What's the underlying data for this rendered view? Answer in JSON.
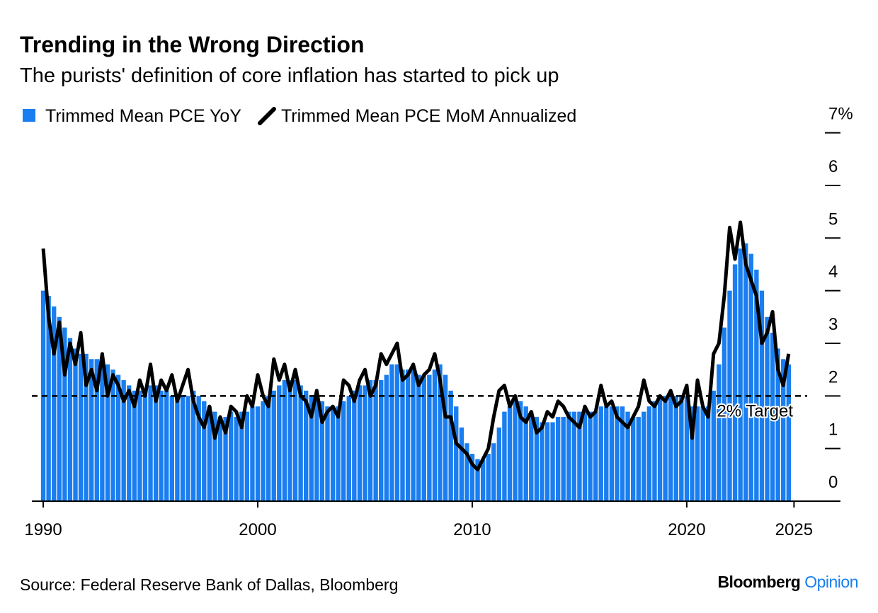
{
  "chart_data": {
    "type": "bar",
    "title": "Trending in the Wrong Direction",
    "subtitle": "The purists' definition of core inflation has started to pick up",
    "source": "Source: Federal Reserve Bank of Dallas, Bloomberg",
    "brand": [
      "Bloomberg",
      "Opinion"
    ],
    "xlim": [
      1989.47,
      2027.1
    ],
    "xticks": [
      1990,
      2000,
      2010,
      2020,
      2025
    ],
    "ylim": [
      0,
      7.6
    ],
    "yticks": [
      0,
      1,
      2,
      3,
      4,
      5,
      6,
      {
        "value": 7,
        "label": "7%"
      }
    ],
    "target": {
      "value": 2,
      "label": "2% Target"
    },
    "x": [
      1990,
      1990.25,
      1990.5,
      1990.75,
      1991,
      1991.25,
      1991.5,
      1991.75,
      1992,
      1992.25,
      1992.5,
      1992.75,
      1993,
      1993.25,
      1993.5,
      1993.75,
      1994,
      1994.25,
      1994.5,
      1994.75,
      1995,
      1995.25,
      1995.5,
      1995.75,
      1996,
      1996.25,
      1996.5,
      1996.75,
      1997,
      1997.25,
      1997.5,
      1997.75,
      1998,
      1998.25,
      1998.5,
      1998.75,
      1999,
      1999.25,
      1999.5,
      1999.75,
      2000,
      2000.25,
      2000.5,
      2000.75,
      2001,
      2001.25,
      2001.5,
      2001.75,
      2002,
      2002.25,
      2002.5,
      2002.75,
      2003,
      2003.25,
      2003.5,
      2003.75,
      2004,
      2004.25,
      2004.5,
      2004.75,
      2005,
      2005.25,
      2005.5,
      2005.75,
      2006,
      2006.25,
      2006.5,
      2006.75,
      2007,
      2007.25,
      2007.5,
      2007.75,
      2008,
      2008.25,
      2008.5,
      2008.75,
      2009,
      2009.25,
      2009.5,
      2009.75,
      2010,
      2010.25,
      2010.5,
      2010.75,
      2011,
      2011.25,
      2011.5,
      2011.75,
      2012,
      2012.25,
      2012.5,
      2012.75,
      2013,
      2013.25,
      2013.5,
      2013.75,
      2014,
      2014.25,
      2014.5,
      2014.75,
      2015,
      2015.25,
      2015.5,
      2015.75,
      2016,
      2016.25,
      2016.5,
      2016.75,
      2017,
      2017.25,
      2017.5,
      2017.75,
      2018,
      2018.25,
      2018.5,
      2018.75,
      2019,
      2019.25,
      2019.5,
      2019.75,
      2020,
      2020.25,
      2020.5,
      2020.75,
      2021,
      2021.25,
      2021.5,
      2021.75,
      2022,
      2022.25,
      2022.5,
      2022.75,
      2023,
      2023.25,
      2023.5,
      2023.75,
      2024,
      2024.25,
      2024.5,
      2024.75
    ],
    "series": [
      {
        "name": "Trimmed Mean PCE YoY",
        "type": "bar",
        "color": "#1a7ef0",
        "values": [
          4.0,
          3.9,
          3.7,
          3.5,
          3.3,
          3.1,
          2.9,
          2.8,
          2.8,
          2.7,
          2.7,
          2.6,
          2.6,
          2.5,
          2.4,
          2.3,
          2.2,
          2.1,
          2.1,
          2.1,
          2.2,
          2.2,
          2.1,
          2.1,
          2.0,
          2.0,
          2.0,
          2.0,
          2.1,
          2.0,
          1.9,
          1.8,
          1.7,
          1.6,
          1.6,
          1.7,
          1.6,
          1.7,
          1.7,
          1.8,
          1.8,
          1.9,
          2.0,
          2.1,
          2.2,
          2.3,
          2.3,
          2.3,
          2.2,
          2.1,
          2.0,
          1.9,
          1.9,
          1.8,
          1.8,
          1.8,
          1.9,
          2.0,
          2.1,
          2.2,
          2.2,
          2.3,
          2.3,
          2.3,
          2.4,
          2.6,
          2.6,
          2.5,
          2.5,
          2.5,
          2.4,
          2.4,
          2.4,
          2.5,
          2.6,
          2.4,
          2.1,
          1.8,
          1.4,
          1.1,
          0.9,
          0.8,
          0.8,
          0.9,
          1.1,
          1.4,
          1.7,
          1.8,
          1.9,
          1.9,
          1.8,
          1.7,
          1.6,
          1.5,
          1.5,
          1.5,
          1.6,
          1.6,
          1.7,
          1.7,
          1.7,
          1.7,
          1.7,
          1.7,
          1.8,
          1.8,
          1.8,
          1.8,
          1.8,
          1.7,
          1.6,
          1.6,
          1.7,
          1.8,
          1.9,
          2.0,
          2.0,
          2.0,
          2.0,
          2.0,
          2.0,
          1.8,
          1.8,
          1.8,
          1.8,
          2.1,
          2.6,
          3.3,
          4.0,
          4.5,
          4.8,
          4.9,
          4.7,
          4.4,
          4.0,
          3.5,
          3.2,
          2.9,
          2.7,
          2.6
        ]
      },
      {
        "name": "Trimmed Mean PCE MoM Annualized",
        "type": "line",
        "color": "#000000",
        "values": [
          4.8,
          3.5,
          2.8,
          3.4,
          2.4,
          3.0,
          2.6,
          3.2,
          2.2,
          2.5,
          2.1,
          2.8,
          2.0,
          2.4,
          2.2,
          1.9,
          2.1,
          1.8,
          2.3,
          2.0,
          2.6,
          1.9,
          2.3,
          2.1,
          2.4,
          1.9,
          2.2,
          2.5,
          1.9,
          1.6,
          1.4,
          1.8,
          1.2,
          1.6,
          1.3,
          1.8,
          1.7,
          1.4,
          2.0,
          1.8,
          2.4,
          2.0,
          1.8,
          2.7,
          2.3,
          2.6,
          2.1,
          2.5,
          2.0,
          1.9,
          1.6,
          2.1,
          1.5,
          1.7,
          1.8,
          1.6,
          2.3,
          2.2,
          1.9,
          2.3,
          2.5,
          2.0,
          2.2,
          2.8,
          2.6,
          2.8,
          3.0,
          2.3,
          2.4,
          2.6,
          2.2,
          2.4,
          2.5,
          2.8,
          2.3,
          1.6,
          1.6,
          1.1,
          1.0,
          0.9,
          0.7,
          0.6,
          0.8,
          1.0,
          1.6,
          2.1,
          2.2,
          1.8,
          2.0,
          1.6,
          1.5,
          1.7,
          1.3,
          1.4,
          1.7,
          1.6,
          1.9,
          1.8,
          1.6,
          1.5,
          1.4,
          1.8,
          1.6,
          1.7,
          2.2,
          1.8,
          1.9,
          1.6,
          1.5,
          1.4,
          1.6,
          1.8,
          2.3,
          1.9,
          1.8,
          2.0,
          1.9,
          2.1,
          1.8,
          1.9,
          2.2,
          1.2,
          2.3,
          1.8,
          1.6,
          2.8,
          3.0,
          3.9,
          5.2,
          4.6,
          5.3,
          4.5,
          4.2,
          3.9,
          3.0,
          3.2,
          3.6,
          2.5,
          2.2,
          2.8
        ]
      }
    ]
  }
}
